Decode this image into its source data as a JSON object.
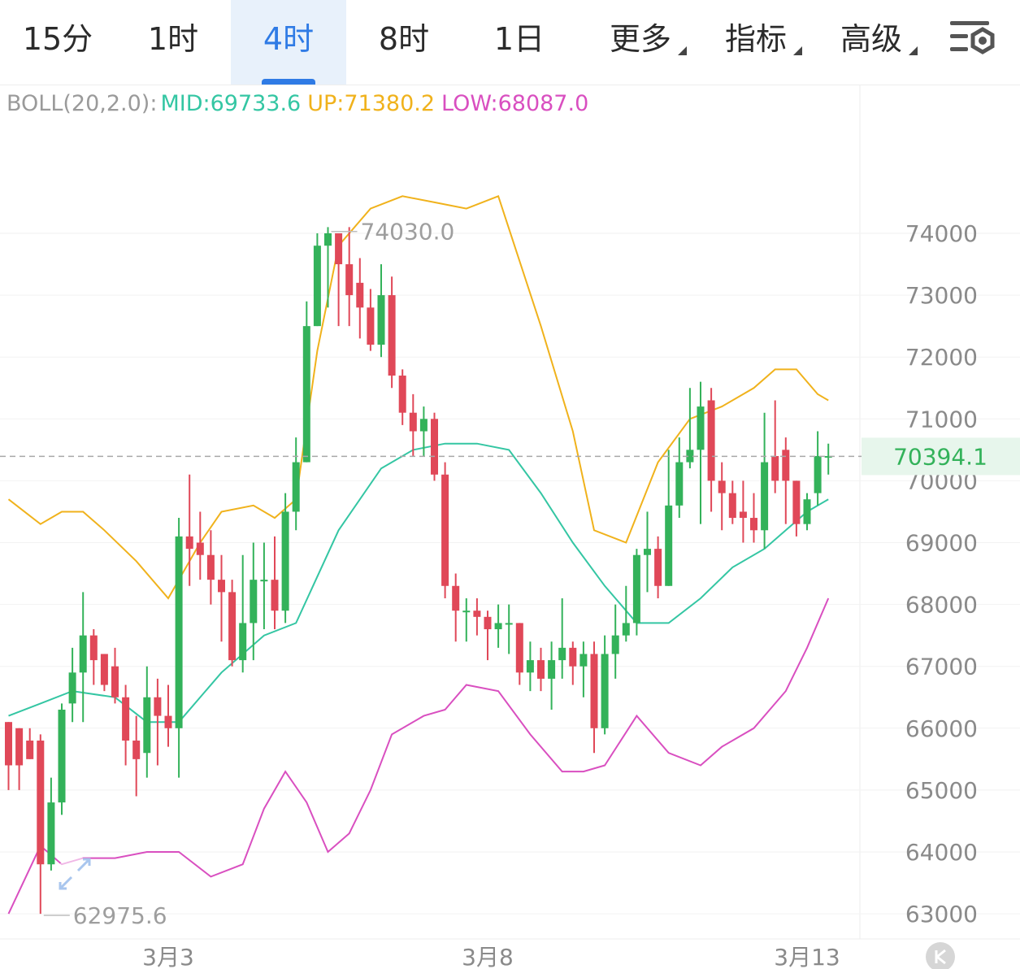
{
  "tabs": [
    {
      "label": "15分",
      "active": false
    },
    {
      "label": "1时",
      "active": false
    },
    {
      "label": "4时",
      "active": true
    },
    {
      "label": "8时",
      "active": false
    },
    {
      "label": "1日",
      "active": false
    }
  ],
  "menus": [
    {
      "label": "更多"
    },
    {
      "label": "指标"
    },
    {
      "label": "高级"
    }
  ],
  "settings_icon": "settings-sliders-icon",
  "indicator": {
    "name": "BOLL(20,2.0):",
    "mid": "MID:69733.6",
    "up": "UP:71380.2",
    "low": "LOW:68087.0"
  },
  "colors": {
    "up": "#33b25a",
    "down": "#e04858",
    "mid": "#34c6a3",
    "upper": "#f0b21c",
    "lower": "#d94fc0",
    "accent": "#2f7be5"
  },
  "chart_data": {
    "type": "candlestick",
    "ylim": [
      62600,
      75400
    ],
    "y_ticks": [
      "74000",
      "73000",
      "72000",
      "71000",
      "70000",
      "69000",
      "68000",
      "67000",
      "66000",
      "65000",
      "64000",
      "63000"
    ],
    "x_ticks": [
      {
        "label": "3月3",
        "index": 15
      },
      {
        "label": "3月8",
        "index": 45
      },
      {
        "label": "3月13",
        "index": 75
      }
    ],
    "current_price": "70394.1",
    "high_label": "74030.0",
    "low_label": "62975.6",
    "candles": [
      [
        66100,
        65400,
        66100,
        65000
      ],
      [
        66000,
        65400,
        66000,
        65000
      ],
      [
        65800,
        65500,
        66000,
        65500
      ],
      [
        65800,
        63800,
        65900,
        63000
      ],
      [
        63800,
        64800,
        65200,
        63700
      ],
      [
        64800,
        66300,
        66400,
        64600
      ],
      [
        66400,
        66900,
        67300,
        66100
      ],
      [
        66900,
        67500,
        68200,
        66100
      ],
      [
        67500,
        67100,
        67600,
        66700
      ],
      [
        67200,
        66700,
        67200,
        66600
      ],
      [
        67000,
        66500,
        67300,
        66400
      ],
      [
        66500,
        65800,
        66700,
        65400
      ],
      [
        65800,
        65500,
        66200,
        64900
      ],
      [
        65600,
        66500,
        67000,
        65200
      ],
      [
        66500,
        66200,
        66800,
        65400
      ],
      [
        66200,
        66000,
        66700,
        65700
      ],
      [
        66000,
        69100,
        69400,
        65200
      ],
      [
        69100,
        68900,
        70100,
        68300
      ],
      [
        69000,
        68800,
        69500,
        68400
      ],
      [
        68800,
        68400,
        69200,
        68000
      ],
      [
        68400,
        68200,
        68800,
        67400
      ],
      [
        68200,
        67100,
        68400,
        67000
      ],
      [
        67100,
        67700,
        68800,
        66900
      ],
      [
        67700,
        68400,
        69000,
        67100
      ],
      [
        68400,
        68400,
        69000,
        67600
      ],
      [
        68400,
        67900,
        69100,
        67600
      ],
      [
        67900,
        69500,
        69800,
        67700
      ],
      [
        69500,
        70300,
        70700,
        69200
      ],
      [
        70300,
        72500,
        72900,
        70300
      ],
      [
        72500,
        73800,
        74000,
        72500
      ],
      [
        73800,
        74000,
        74100,
        72800
      ],
      [
        74000,
        73500,
        73900,
        72500
      ],
      [
        73500,
        73000,
        74100,
        72500
      ],
      [
        73200,
        72800,
        73600,
        72300
      ],
      [
        72800,
        72200,
        73100,
        72100
      ],
      [
        72200,
        73000,
        73500,
        72000
      ],
      [
        73000,
        71700,
        73300,
        71500
      ],
      [
        71700,
        71100,
        71800,
        70900
      ],
      [
        71100,
        70800,
        71400,
        70400
      ],
      [
        70800,
        71000,
        71200,
        70400
      ],
      [
        71000,
        70100,
        71100,
        70000
      ],
      [
        70100,
        68300,
        70300,
        68100
      ],
      [
        68300,
        67900,
        68500,
        67400
      ],
      [
        67900,
        67900,
        68100,
        67400
      ],
      [
        67900,
        67800,
        68100,
        67500
      ],
      [
        67800,
        67600,
        67900,
        67100
      ],
      [
        67600,
        67700,
        68000,
        67300
      ],
      [
        67700,
        67700,
        68000,
        67200
      ],
      [
        67700,
        66900,
        67700,
        66700
      ],
      [
        66900,
        67100,
        67400,
        66600
      ],
      [
        67100,
        66800,
        67300,
        66600
      ],
      [
        66800,
        67100,
        67400,
        66300
      ],
      [
        67100,
        67300,
        68100,
        66800
      ],
      [
        67300,
        67000,
        67400,
        66700
      ],
      [
        67000,
        67200,
        67400,
        66500
      ],
      [
        67200,
        66000,
        67400,
        65600
      ],
      [
        66000,
        67200,
        67500,
        65900
      ],
      [
        67200,
        67500,
        68000,
        66800
      ],
      [
        67500,
        67700,
        68300,
        67400
      ],
      [
        67700,
        68800,
        68900,
        67500
      ],
      [
        68800,
        68900,
        69500,
        68200
      ],
      [
        68900,
        68300,
        69100,
        68100
      ],
      [
        68300,
        69600,
        70500,
        68300
      ],
      [
        69600,
        70300,
        70700,
        69400
      ],
      [
        70300,
        70500,
        71500,
        70200
      ],
      [
        70500,
        71200,
        71600,
        69300
      ],
      [
        71300,
        70000,
        71500,
        69500
      ],
      [
        70000,
        69800,
        70300,
        69200
      ],
      [
        69800,
        69400,
        70000,
        69300
      ],
      [
        69500,
        69400,
        70000,
        69000
      ],
      [
        69400,
        69200,
        69800,
        69000
      ],
      [
        69200,
        70300,
        71100,
        68900
      ],
      [
        70400,
        70000,
        71300,
        69800
      ],
      [
        70500,
        70000,
        70700,
        69300
      ],
      [
        70000,
        69300,
        70000,
        69100
      ],
      [
        69300,
        69700,
        69800,
        69200
      ],
      [
        69800,
        70400,
        70800,
        69600
      ],
      [
        70400,
        70400,
        70600,
        70100
      ]
    ],
    "boll_mid": [
      [
        0,
        66200
      ],
      [
        3,
        66400
      ],
      [
        6,
        66600
      ],
      [
        10,
        66500
      ],
      [
        13,
        66100
      ],
      [
        16,
        66100
      ],
      [
        20,
        66900
      ],
      [
        24,
        67500
      ],
      [
        27,
        67700
      ],
      [
        31,
        69200
      ],
      [
        35,
        70200
      ],
      [
        38,
        70500
      ],
      [
        41,
        70600
      ],
      [
        44,
        70600
      ],
      [
        47,
        70500
      ],
      [
        50,
        69800
      ],
      [
        53,
        69000
      ],
      [
        56,
        68300
      ],
      [
        59,
        67700
      ],
      [
        62,
        67700
      ],
      [
        65,
        68100
      ],
      [
        68,
        68600
      ],
      [
        71,
        68900
      ],
      [
        73,
        69200
      ],
      [
        75,
        69500
      ],
      [
        77,
        69700
      ]
    ],
    "boll_upper": [
      [
        0,
        69700
      ],
      [
        3,
        69300
      ],
      [
        5,
        69500
      ],
      [
        7,
        69500
      ],
      [
        9,
        69200
      ],
      [
        12,
        68700
      ],
      [
        15,
        68100
      ],
      [
        18,
        69000
      ],
      [
        20,
        69500
      ],
      [
        23,
        69600
      ],
      [
        25,
        69400
      ],
      [
        27,
        69700
      ],
      [
        29,
        72100
      ],
      [
        31,
        73800
      ],
      [
        34,
        74400
      ],
      [
        37,
        74600
      ],
      [
        40,
        74500
      ],
      [
        43,
        74400
      ],
      [
        46,
        74600
      ],
      [
        50,
        72500
      ],
      [
        53,
        70800
      ],
      [
        55,
        69200
      ],
      [
        58,
        69000
      ],
      [
        61,
        70300
      ],
      [
        64,
        71000
      ],
      [
        67,
        71200
      ],
      [
        70,
        71500
      ],
      [
        72,
        71800
      ],
      [
        74,
        71800
      ],
      [
        76,
        71400
      ],
      [
        77,
        71300
      ]
    ],
    "boll_lower": [
      [
        0,
        63000
      ],
      [
        3,
        64100
      ],
      [
        5,
        63800
      ],
      [
        7,
        63900
      ],
      [
        10,
        63900
      ],
      [
        13,
        64000
      ],
      [
        16,
        64000
      ],
      [
        19,
        63600
      ],
      [
        22,
        63800
      ],
      [
        24,
        64700
      ],
      [
        26,
        65300
      ],
      [
        28,
        64800
      ],
      [
        30,
        64000
      ],
      [
        32,
        64300
      ],
      [
        34,
        65000
      ],
      [
        36,
        65900
      ],
      [
        39,
        66200
      ],
      [
        41,
        66300
      ],
      [
        43,
        66700
      ],
      [
        46,
        66600
      ],
      [
        49,
        65900
      ],
      [
        52,
        65300
      ],
      [
        54,
        65300
      ],
      [
        56,
        65400
      ],
      [
        59,
        66200
      ],
      [
        62,
        65600
      ],
      [
        65,
        65400
      ],
      [
        67,
        65700
      ],
      [
        70,
        66000
      ],
      [
        73,
        66600
      ],
      [
        75,
        67300
      ],
      [
        77,
        68100
      ]
    ]
  }
}
